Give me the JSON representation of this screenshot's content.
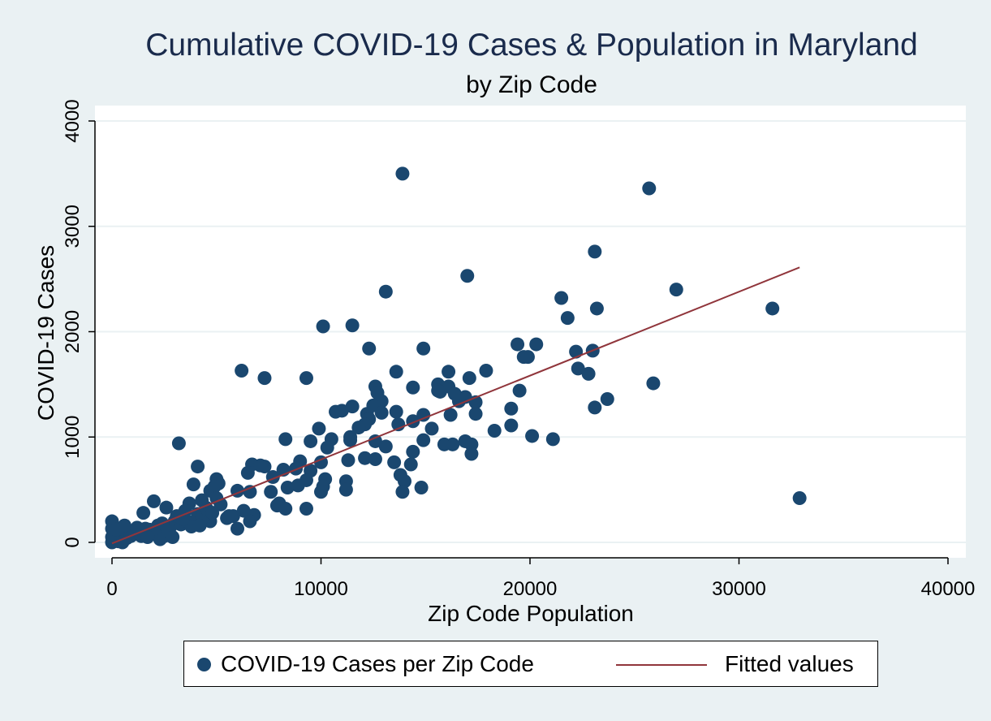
{
  "chart_data": {
    "type": "scatter",
    "title": "Cumulative COVID-19 Cases & Population in Maryland",
    "subtitle": "by Zip Code",
    "xlabel": "Zip Code Population",
    "ylabel": "COVID-19 Cases",
    "xlim": [
      0,
      40000
    ],
    "ylim": [
      0,
      4000
    ],
    "xticks": [
      0,
      10000,
      20000,
      30000,
      40000
    ],
    "yticks": [
      0,
      1000,
      2000,
      3000,
      4000
    ],
    "grid": "horizontal",
    "legend_position": "bottom",
    "series": [
      {
        "name": "COVID-19 Cases per Zip Code",
        "kind": "scatter",
        "color": "#1a476f",
        "points": [
          [
            13900,
            3500
          ],
          [
            25700,
            3360
          ],
          [
            23100,
            2760
          ],
          [
            17000,
            2530
          ],
          [
            27000,
            2400
          ],
          [
            13100,
            2380
          ],
          [
            21500,
            2320
          ],
          [
            31600,
            2220
          ],
          [
            23200,
            2220
          ],
          [
            21800,
            2130
          ],
          [
            10100,
            2050
          ],
          [
            11500,
            2060
          ],
          [
            19400,
            1880
          ],
          [
            20300,
            1880
          ],
          [
            12300,
            1840
          ],
          [
            14900,
            1840
          ],
          [
            23000,
            1820
          ],
          [
            22200,
            1810
          ],
          [
            19700,
            1760
          ],
          [
            19900,
            1760
          ],
          [
            22300,
            1650
          ],
          [
            6200,
            1630
          ],
          [
            13600,
            1620
          ],
          [
            16100,
            1620
          ],
          [
            17900,
            1630
          ],
          [
            22800,
            1600
          ],
          [
            9300,
            1560
          ],
          [
            7300,
            1560
          ],
          [
            17100,
            1560
          ],
          [
            15600,
            1500
          ],
          [
            25900,
            1510
          ],
          [
            12600,
            1480
          ],
          [
            14400,
            1470
          ],
          [
            16100,
            1480
          ],
          [
            12700,
            1420
          ],
          [
            15600,
            1440
          ],
          [
            16400,
            1410
          ],
          [
            15700,
            1430
          ],
          [
            16900,
            1380
          ],
          [
            19500,
            1440
          ],
          [
            23700,
            1360
          ],
          [
            12900,
            1340
          ],
          [
            16600,
            1340
          ],
          [
            12500,
            1300
          ],
          [
            11500,
            1290
          ],
          [
            17400,
            1330
          ],
          [
            19100,
            1270
          ],
          [
            23100,
            1280
          ],
          [
            10700,
            1240
          ],
          [
            13600,
            1240
          ],
          [
            11000,
            1250
          ],
          [
            12200,
            1220
          ],
          [
            12900,
            1230
          ],
          [
            14900,
            1210
          ],
          [
            16200,
            1210
          ],
          [
            17400,
            1220
          ],
          [
            12300,
            1170
          ],
          [
            13700,
            1120
          ],
          [
            14400,
            1150
          ],
          [
            12100,
            1120
          ],
          [
            11800,
            1090
          ],
          [
            15300,
            1080
          ],
          [
            9900,
            1080
          ],
          [
            18300,
            1060
          ],
          [
            19100,
            1110
          ],
          [
            11400,
            1000
          ],
          [
            10500,
            980
          ],
          [
            8300,
            980
          ],
          [
            9500,
            960
          ],
          [
            11400,
            970
          ],
          [
            10300,
            900
          ],
          [
            12600,
            960
          ],
          [
            13100,
            910
          ],
          [
            14900,
            970
          ],
          [
            20100,
            1010
          ],
          [
            21100,
            980
          ],
          [
            3200,
            940
          ],
          [
            16300,
            930
          ],
          [
            17200,
            930
          ],
          [
            16900,
            960
          ],
          [
            15900,
            930
          ],
          [
            12100,
            800
          ],
          [
            11300,
            780
          ],
          [
            12600,
            790
          ],
          [
            14400,
            860
          ],
          [
            13500,
            760
          ],
          [
            14300,
            740
          ],
          [
            17200,
            840
          ],
          [
            10000,
            760
          ],
          [
            9000,
            770
          ],
          [
            6700,
            740
          ],
          [
            7300,
            720
          ],
          [
            4100,
            720
          ],
          [
            7100,
            730
          ],
          [
            8200,
            690
          ],
          [
            8800,
            700
          ],
          [
            9500,
            680
          ],
          [
            9300,
            590
          ],
          [
            10200,
            600
          ],
          [
            6500,
            660
          ],
          [
            7700,
            620
          ],
          [
            3900,
            550
          ],
          [
            5000,
            600
          ],
          [
            5100,
            560
          ],
          [
            13800,
            640
          ],
          [
            14000,
            580
          ],
          [
            11200,
            580
          ],
          [
            10100,
            530
          ],
          [
            8400,
            520
          ],
          [
            8900,
            540
          ],
          [
            14800,
            520
          ],
          [
            13900,
            480
          ],
          [
            10000,
            480
          ],
          [
            11200,
            500
          ],
          [
            7600,
            480
          ],
          [
            6000,
            490
          ],
          [
            6600,
            480
          ],
          [
            4700,
            490
          ],
          [
            4900,
            530
          ],
          [
            8000,
            370
          ],
          [
            7900,
            350
          ],
          [
            8300,
            320
          ],
          [
            9300,
            320
          ],
          [
            32900,
            420
          ],
          [
            2000,
            390
          ],
          [
            2600,
            330
          ],
          [
            1500,
            280
          ],
          [
            3700,
            370
          ],
          [
            4300,
            400
          ],
          [
            5000,
            420
          ],
          [
            5800,
            250
          ],
          [
            6300,
            300
          ],
          [
            6800,
            260
          ],
          [
            6600,
            200
          ],
          [
            3500,
            300
          ],
          [
            4500,
            330
          ],
          [
            4100,
            270
          ],
          [
            5500,
            230
          ],
          [
            4700,
            200
          ],
          [
            3000,
            200
          ],
          [
            2800,
            150
          ],
          [
            2200,
            160
          ],
          [
            1800,
            120
          ],
          [
            1300,
            100
          ],
          [
            1000,
            90
          ],
          [
            800,
            110
          ],
          [
            600,
            70
          ],
          [
            400,
            50
          ],
          [
            200,
            30
          ],
          [
            100,
            15
          ],
          [
            0,
            0
          ],
          [
            0,
            50
          ],
          [
            0,
            130
          ],
          [
            0,
            200
          ],
          [
            300,
            10
          ],
          [
            500,
            0
          ],
          [
            700,
            40
          ],
          [
            900,
            60
          ],
          [
            1100,
            80
          ],
          [
            1400,
            60
          ],
          [
            1600,
            130
          ],
          [
            1900,
            80
          ],
          [
            2100,
            90
          ],
          [
            2300,
            30
          ],
          [
            2500,
            60
          ],
          [
            2700,
            100
          ],
          [
            3300,
            170
          ],
          [
            3600,
            200
          ],
          [
            4000,
            180
          ],
          [
            4300,
            230
          ],
          [
            6000,
            130
          ],
          [
            3800,
            150
          ],
          [
            2900,
            50
          ],
          [
            600,
            160
          ],
          [
            200,
            120
          ],
          [
            1200,
            140
          ],
          [
            1700,
            50
          ],
          [
            2400,
            180
          ],
          [
            3100,
            250
          ],
          [
            4600,
            300
          ],
          [
            5200,
            360
          ],
          [
            5600,
            250
          ],
          [
            3400,
            220
          ],
          [
            4200,
            160
          ],
          [
            4800,
            280
          ]
        ]
      },
      {
        "name": "Fitted values",
        "kind": "line",
        "color": "#90353b",
        "points": [
          [
            0,
            -10
          ],
          [
            32900,
            2610
          ]
        ]
      }
    ]
  }
}
